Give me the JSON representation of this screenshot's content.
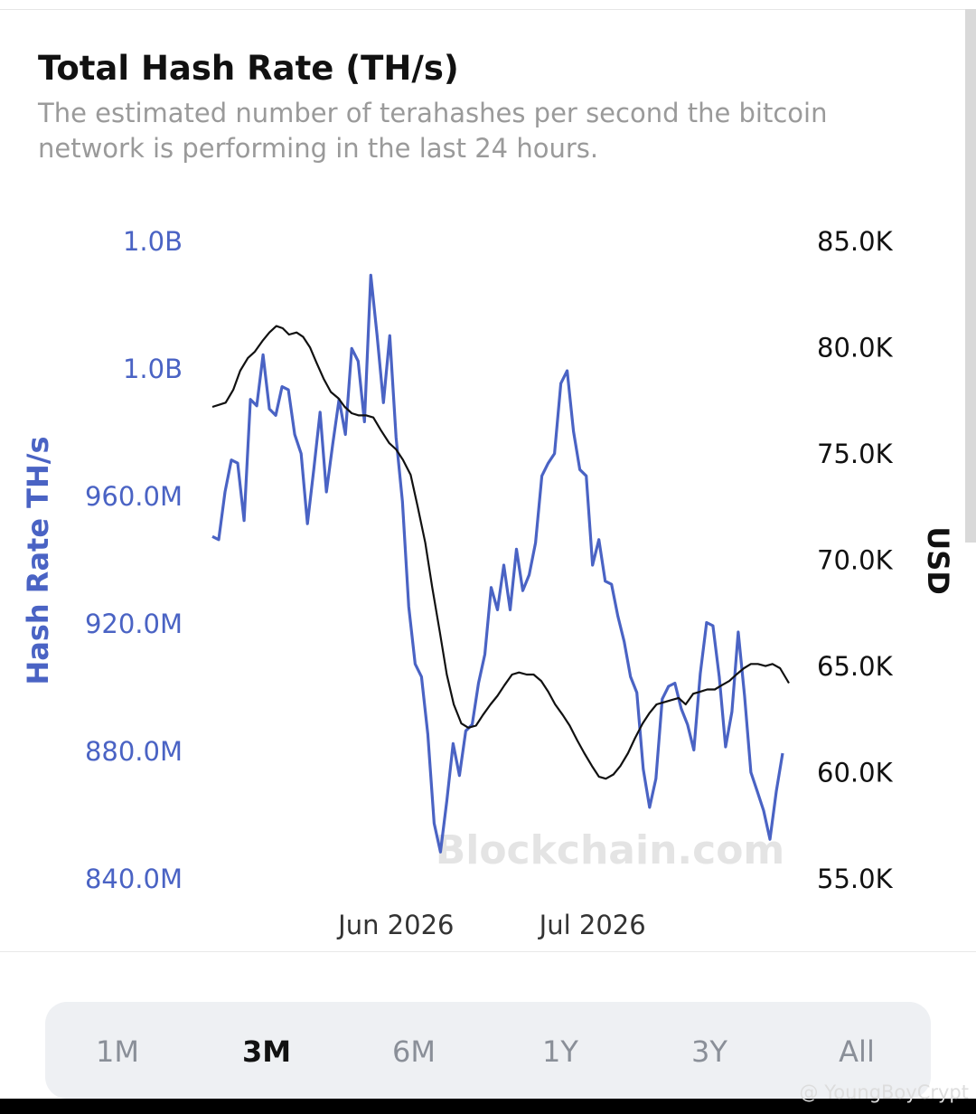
{
  "chart_data": {
    "type": "line",
    "title": "Total Hash Rate (TH/s)",
    "subtitle": "The estimated number of terahashes per second the bitcoin network is performing in the last 24 hours.",
    "y_label": "Hash Rate TH/s",
    "y2_label": "USD",
    "watermark": "Blockchain.com",
    "x": [
      0,
      1,
      2,
      3,
      4,
      5,
      6,
      7,
      8,
      9,
      10,
      11,
      12,
      13,
      14,
      15,
      16,
      17,
      18,
      19,
      20,
      21,
      22,
      23,
      24,
      25,
      26,
      27,
      28,
      29,
      30,
      31,
      32,
      33,
      34,
      35,
      36,
      37,
      38,
      39,
      40,
      41,
      42,
      43,
      44,
      45,
      46,
      47,
      48,
      49,
      50,
      51,
      52,
      53,
      54,
      55,
      56,
      57,
      58,
      59,
      60,
      61,
      62,
      63,
      64,
      65,
      66,
      67,
      68,
      69,
      70,
      71,
      72,
      73,
      74,
      75,
      76,
      77,
      78,
      79,
      80,
      81,
      82,
      83,
      84,
      85,
      86,
      87,
      88,
      89,
      90
    ],
    "xlim": [
      0,
      90
    ],
    "xticks": [
      {
        "value": 29,
        "label": "Jun 2026"
      },
      {
        "value": 60,
        "label": "Jul 2026"
      }
    ],
    "series": [
      {
        "color": "#4a63c4",
        "values": [
          948000000,
          947000000,
          962000000,
          972000000,
          971000000,
          953000000,
          991000000,
          989000000,
          1005000000,
          988000000,
          986000000,
          995000000,
          994000000,
          980000000,
          974000000,
          952000000,
          969000000,
          987000000,
          962000000,
          977000000,
          991000000,
          980000000,
          1007000000,
          1003000000,
          984000000,
          1030000000,
          1011000000,
          990000000,
          1011000000,
          979000000,
          959000000,
          926000000,
          908000000,
          904000000,
          886000000,
          858000000,
          849000000,
          865000000,
          883000000,
          873000000,
          887000000,
          889000000,
          902000000,
          911000000,
          932000000,
          925000000,
          939000000,
          925000000,
          944000000,
          931000000,
          936000000,
          946000000,
          967000000,
          971000000,
          974000000,
          996000000,
          1000000000,
          981000000,
          969000000,
          967000000,
          939000000,
          947000000,
          934000000,
          933000000,
          923000000,
          915000000,
          904000000,
          899000000,
          875000000,
          863000000,
          872000000,
          897000000,
          901000000,
          902000000,
          894000000,
          889000000,
          881000000,
          905000000,
          921000000,
          920000000,
          904000000,
          882000000,
          893000000,
          918000000,
          898000000,
          874000000,
          868000000,
          862000000,
          853000000,
          868000000,
          880000000
        ]
      },
      {
        "color": "#111111",
        "axis": "y2",
        "x": [
          0,
          1.1,
          2.1,
          3.3,
          4.4,
          5.6,
          6.7,
          7.9,
          9,
          10.1,
          11.1,
          12.1,
          13.3,
          14.3,
          15.4,
          16.4,
          17.6,
          18.7,
          19.9,
          20.9,
          22,
          23.1,
          24.3,
          25.4,
          26.6,
          27.9,
          29,
          30.1,
          31.3,
          32.4,
          33.6,
          34.7,
          35.9,
          37,
          38.1,
          39.3,
          40.4,
          41.6,
          42.7,
          43.9,
          45,
          46.1,
          47.3,
          48.4,
          49.6,
          50.7,
          51.9,
          53,
          54.1,
          55.3,
          56.4,
          57.6,
          58.7,
          59.9,
          61,
          62.1,
          63.3,
          64.4,
          65.6,
          66.7,
          67.9,
          69,
          70.1,
          71.3,
          72.4,
          73.6,
          74.7,
          75.9,
          77,
          78.1,
          79.3,
          80.4,
          81.6,
          82.7,
          83.9,
          85,
          86.1,
          87.3,
          88.4,
          89.6,
          91
        ],
        "values": [
          77300,
          77400,
          77500,
          78100,
          79000,
          79600,
          79900,
          80400,
          80800,
          81100,
          81000,
          80700,
          80800,
          80600,
          80100,
          79400,
          78600,
          78000,
          77700,
          77300,
          77000,
          76900,
          76900,
          76800,
          76200,
          75600,
          75300,
          74800,
          74100,
          72600,
          70900,
          68800,
          66700,
          64700,
          63300,
          62400,
          62200,
          62300,
          62800,
          63300,
          63700,
          64200,
          64700,
          64800,
          64700,
          64700,
          64400,
          63900,
          63300,
          62800,
          62300,
          61600,
          61000,
          60400,
          59900,
          59800,
          60000,
          60400,
          61000,
          61700,
          62400,
          62900,
          63300,
          63400,
          63500,
          63600,
          63300,
          63800,
          63900,
          64000,
          64000,
          64200,
          64400,
          64700,
          65000,
          65200,
          65200,
          65100,
          65200,
          65000,
          64300
        ]
      }
    ],
    "ylim": [
      840000000,
      1040000000
    ],
    "yticks": [
      {
        "value": 840000000,
        "label": "840.0M"
      },
      {
        "value": 880000000,
        "label": "880.0M"
      },
      {
        "value": 920000000,
        "label": "920.0M"
      },
      {
        "value": 960000000,
        "label": "960.0M"
      },
      {
        "value": 1000000000,
        "label": "1.0B"
      },
      {
        "value": 1040000000,
        "label": "1.0B"
      }
    ],
    "y2lim": [
      55000,
      85000
    ],
    "y2ticks": [
      {
        "value": 55000,
        "label": "55.0K"
      },
      {
        "value": 60000,
        "label": "60.0K"
      },
      {
        "value": 65000,
        "label": "65.0K"
      },
      {
        "value": 70000,
        "label": "70.0K"
      },
      {
        "value": 75000,
        "label": "75.0K"
      },
      {
        "value": 80000,
        "label": "80.0K"
      },
      {
        "value": 85000,
        "label": "85.0K"
      }
    ]
  },
  "range_tabs": [
    "1M",
    "3M",
    "6M",
    "1Y",
    "3Y",
    "All"
  ],
  "active_range": "3M",
  "overlay_watermark": "@ YoungBoyCrypt"
}
